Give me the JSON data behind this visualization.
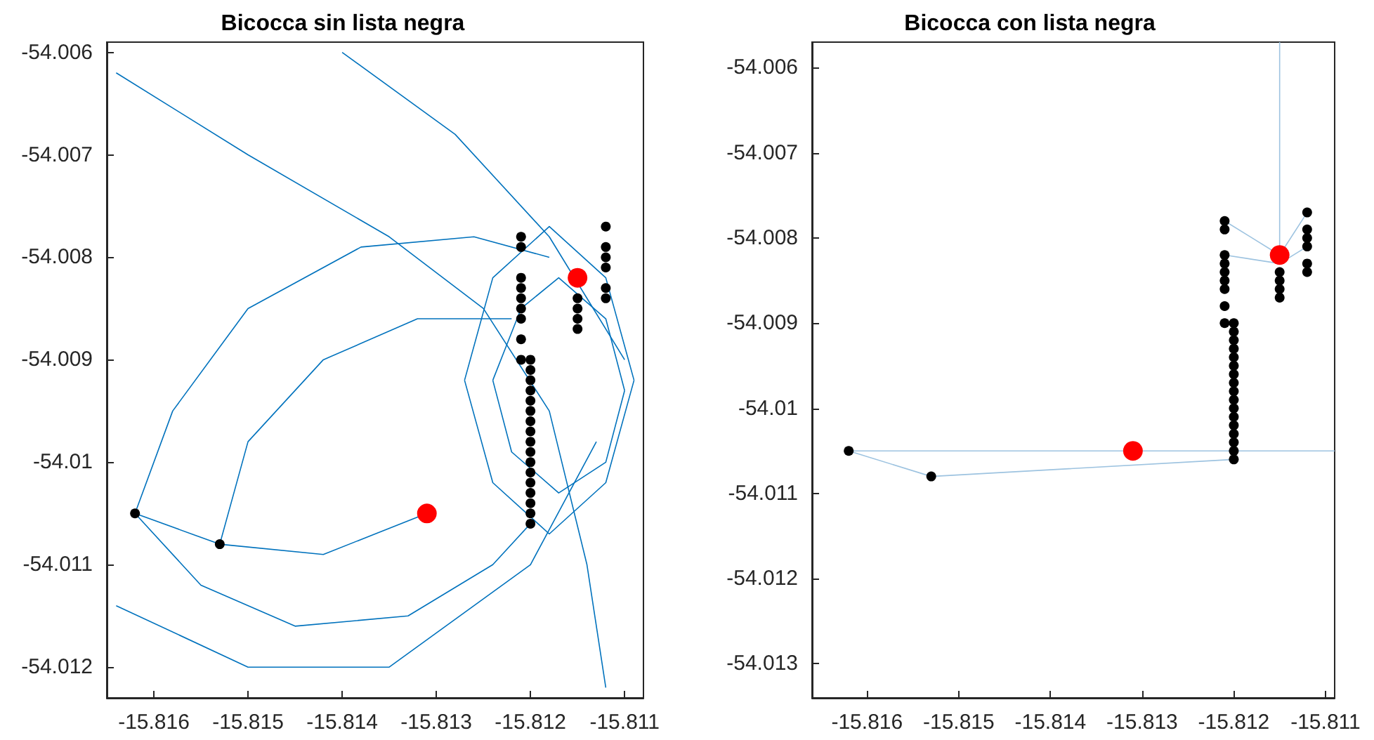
{
  "chart_data": [
    {
      "type": "scatter",
      "title": "Bicocca sin lista negra",
      "xlim": [
        -15.8165,
        -15.8108
      ],
      "ylim": [
        -54.0123,
        -54.0059
      ],
      "xticks": [
        -15.816,
        -15.815,
        -15.814,
        -15.813,
        -15.812,
        -15.811
      ],
      "yticks": [
        -54.006,
        -54.007,
        -54.008,
        -54.009,
        -54.01,
        -54.011,
        -54.012
      ],
      "grid": false,
      "series": [
        {
          "type": "line",
          "color": "#0072bd",
          "x": [
            -15.8162,
            -15.8158,
            -15.815,
            -15.8138,
            -15.8126,
            -15.8118
          ],
          "values": [
            -54.0105,
            -54.0095,
            -54.0085,
            -54.0079,
            -54.0078,
            -54.008
          ]
        },
        {
          "type": "line",
          "color": "#0072bd",
          "x": [
            -15.8162,
            -15.8155,
            -15.8145,
            -15.8133,
            -15.8124,
            -15.812
          ],
          "values": [
            -54.0105,
            -54.0112,
            -54.0116,
            -54.0115,
            -54.011,
            -54.0106
          ]
        },
        {
          "type": "line",
          "color": "#0072bd",
          "x": [
            -15.8153,
            -15.815,
            -15.8142,
            -15.8132,
            -15.8122
          ],
          "values": [
            -54.0108,
            -54.0098,
            -54.009,
            -54.0086,
            -54.0086
          ]
        },
        {
          "type": "line",
          "color": "#0072bd",
          "x": [
            -15.8153,
            -15.8142,
            -15.8131
          ],
          "values": [
            -54.0108,
            -54.0109,
            -54.0105
          ]
        },
        {
          "type": "line",
          "color": "#0072bd",
          "x": [
            -15.8162,
            -15.8153
          ],
          "values": [
            -54.0105,
            -54.0108
          ]
        },
        {
          "type": "line",
          "color": "#0072bd",
          "x": [
            -15.8127,
            -15.8124,
            -15.8118,
            -15.8112,
            -15.8109
          ],
          "values": [
            -54.0092,
            -54.0082,
            -54.0077,
            -54.0082,
            -54.0092
          ]
        },
        {
          "type": "line",
          "color": "#0072bd",
          "x": [
            -15.8127,
            -15.8124,
            -15.8118,
            -15.8112,
            -15.8109
          ],
          "values": [
            -54.0092,
            -54.0102,
            -54.0107,
            -54.0102,
            -54.0092
          ]
        },
        {
          "type": "line",
          "color": "#0072bd",
          "x": [
            -15.8124,
            -15.8121,
            -15.8117,
            -15.8112,
            -15.811
          ],
          "values": [
            -54.0092,
            -54.0085,
            -54.0082,
            -54.0086,
            -54.0093
          ]
        },
        {
          "type": "line",
          "color": "#0072bd",
          "x": [
            -15.8124,
            -15.8122,
            -15.8117,
            -15.8112,
            -15.811
          ],
          "values": [
            -54.0092,
            -54.0099,
            -54.0103,
            -54.01,
            -54.0093
          ]
        },
        {
          "type": "line",
          "color": "#0072bd",
          "x": [
            -15.8164,
            -15.815,
            -15.8135,
            -15.8125,
            -15.8118,
            -15.8114,
            -15.8112
          ],
          "values": [
            -54.0062,
            -54.007,
            -54.0078,
            -54.0085,
            -54.0095,
            -54.011,
            -54.0122
          ]
        },
        {
          "type": "line",
          "color": "#0072bd",
          "x": [
            -15.814,
            -15.8128,
            -15.8118,
            -15.811
          ],
          "values": [
            -54.006,
            -54.0068,
            -54.0078,
            -54.009
          ]
        },
        {
          "type": "line",
          "color": "#0072bd",
          "x": [
            -15.8164,
            -15.815,
            -15.8135,
            -15.812,
            -15.8113
          ],
          "values": [
            -54.0114,
            -54.012,
            -54.012,
            -54.011,
            -54.0098
          ]
        },
        {
          "marker": "circle",
          "color": "#000000",
          "x": [
            -15.8162,
            -15.8153,
            -15.8121,
            -15.8121,
            -15.8121,
            -15.8121,
            -15.8121,
            -15.8121,
            -15.8121,
            -15.8121,
            -15.8121,
            -15.812,
            -15.812,
            -15.812,
            -15.812,
            -15.812,
            -15.812,
            -15.812,
            -15.812,
            -15.812,
            -15.812,
            -15.812,
            -15.812,
            -15.812,
            -15.812,
            -15.812,
            -15.812,
            -15.812,
            -15.8115,
            -15.8115,
            -15.8115,
            -15.8115,
            -15.8112,
            -15.8112,
            -15.8112,
            -15.8112,
            -15.8112,
            -15.8112
          ],
          "values": [
            -54.0105,
            -54.0108,
            -54.0078,
            -54.0079,
            -54.0082,
            -54.0083,
            -54.0084,
            -54.0085,
            -54.0086,
            -54.0088,
            -54.009,
            -54.009,
            -54.0091,
            -54.0092,
            -54.0093,
            -54.0094,
            -54.0095,
            -54.0096,
            -54.0097,
            -54.0098,
            -54.0099,
            -54.01,
            -54.0101,
            -54.0102,
            -54.0103,
            -54.0104,
            -54.0105,
            -54.0106,
            -54.0084,
            -54.0085,
            -54.0086,
            -54.0087,
            -54.0077,
            -54.0079,
            -54.008,
            -54.0081,
            -54.0083,
            -54.0084
          ]
        },
        {
          "marker": "circle",
          "color": "#ff0000",
          "x": [
            -15.8131,
            -15.8115
          ],
          "values": [
            -54.0105,
            -54.0082
          ]
        }
      ]
    },
    {
      "type": "scatter",
      "title": "Bicocca con lista negra",
      "xlim": [
        -15.8166,
        -15.8109
      ],
      "ylim": [
        -54.0134,
        -54.0057
      ],
      "xticks": [
        -15.816,
        -15.815,
        -15.814,
        -15.813,
        -15.812,
        -15.811
      ],
      "yticks": [
        -54.006,
        -54.007,
        -54.008,
        -54.009,
        -54.01,
        -54.011,
        -54.012,
        -54.013
      ],
      "grid": false,
      "series": [
        {
          "type": "line",
          "color": "#9dc3e0",
          "x": [
            -15.8162,
            -15.8153,
            -15.812
          ],
          "values": [
            -54.0105,
            -54.0108,
            -54.0106
          ]
        },
        {
          "type": "line",
          "color": "#9dc3e0",
          "x": [
            -15.8162,
            -15.8109
          ],
          "values": [
            -54.0105,
            -54.0105
          ]
        },
        {
          "type": "line",
          "color": "#9dc3e0",
          "x": [
            -15.8115,
            -15.8115
          ],
          "values": [
            -54.0082,
            -54.0057
          ]
        },
        {
          "type": "line",
          "color": "#9dc3e0",
          "x": [
            -15.8121,
            -15.8115,
            -15.8112
          ],
          "values": [
            -54.0078,
            -54.0082,
            -54.0077
          ]
        },
        {
          "type": "line",
          "color": "#9dc3e0",
          "x": [
            -15.8121,
            -15.8115,
            -15.8112
          ],
          "values": [
            -54.0082,
            -54.0083,
            -54.0081
          ]
        },
        {
          "marker": "circle",
          "color": "#000000",
          "x": [
            -15.8162,
            -15.8153,
            -15.8121,
            -15.8121,
            -15.8121,
            -15.8121,
            -15.8121,
            -15.8121,
            -15.8121,
            -15.8121,
            -15.8121,
            -15.812,
            -15.812,
            -15.812,
            -15.812,
            -15.812,
            -15.812,
            -15.812,
            -15.812,
            -15.812,
            -15.812,
            -15.812,
            -15.812,
            -15.812,
            -15.812,
            -15.812,
            -15.812,
            -15.812,
            -15.8115,
            -15.8115,
            -15.8115,
            -15.8115,
            -15.8112,
            -15.8112,
            -15.8112,
            -15.8112,
            -15.8112,
            -15.8112
          ],
          "values": [
            -54.0105,
            -54.0108,
            -54.0078,
            -54.0079,
            -54.0082,
            -54.0083,
            -54.0084,
            -54.0085,
            -54.0086,
            -54.0088,
            -54.009,
            -54.009,
            -54.0091,
            -54.0092,
            -54.0093,
            -54.0094,
            -54.0095,
            -54.0096,
            -54.0097,
            -54.0098,
            -54.0099,
            -54.01,
            -54.0101,
            -54.0102,
            -54.0103,
            -54.0104,
            -54.0105,
            -54.0106,
            -54.0084,
            -54.0085,
            -54.0086,
            -54.0087,
            -54.0077,
            -54.0079,
            -54.008,
            -54.0081,
            -54.0083,
            -54.0084
          ]
        },
        {
          "marker": "circle",
          "color": "#ff0000",
          "x": [
            -15.8131,
            -15.8115
          ],
          "values": [
            -54.0105,
            -54.0082
          ]
        }
      ]
    }
  ]
}
